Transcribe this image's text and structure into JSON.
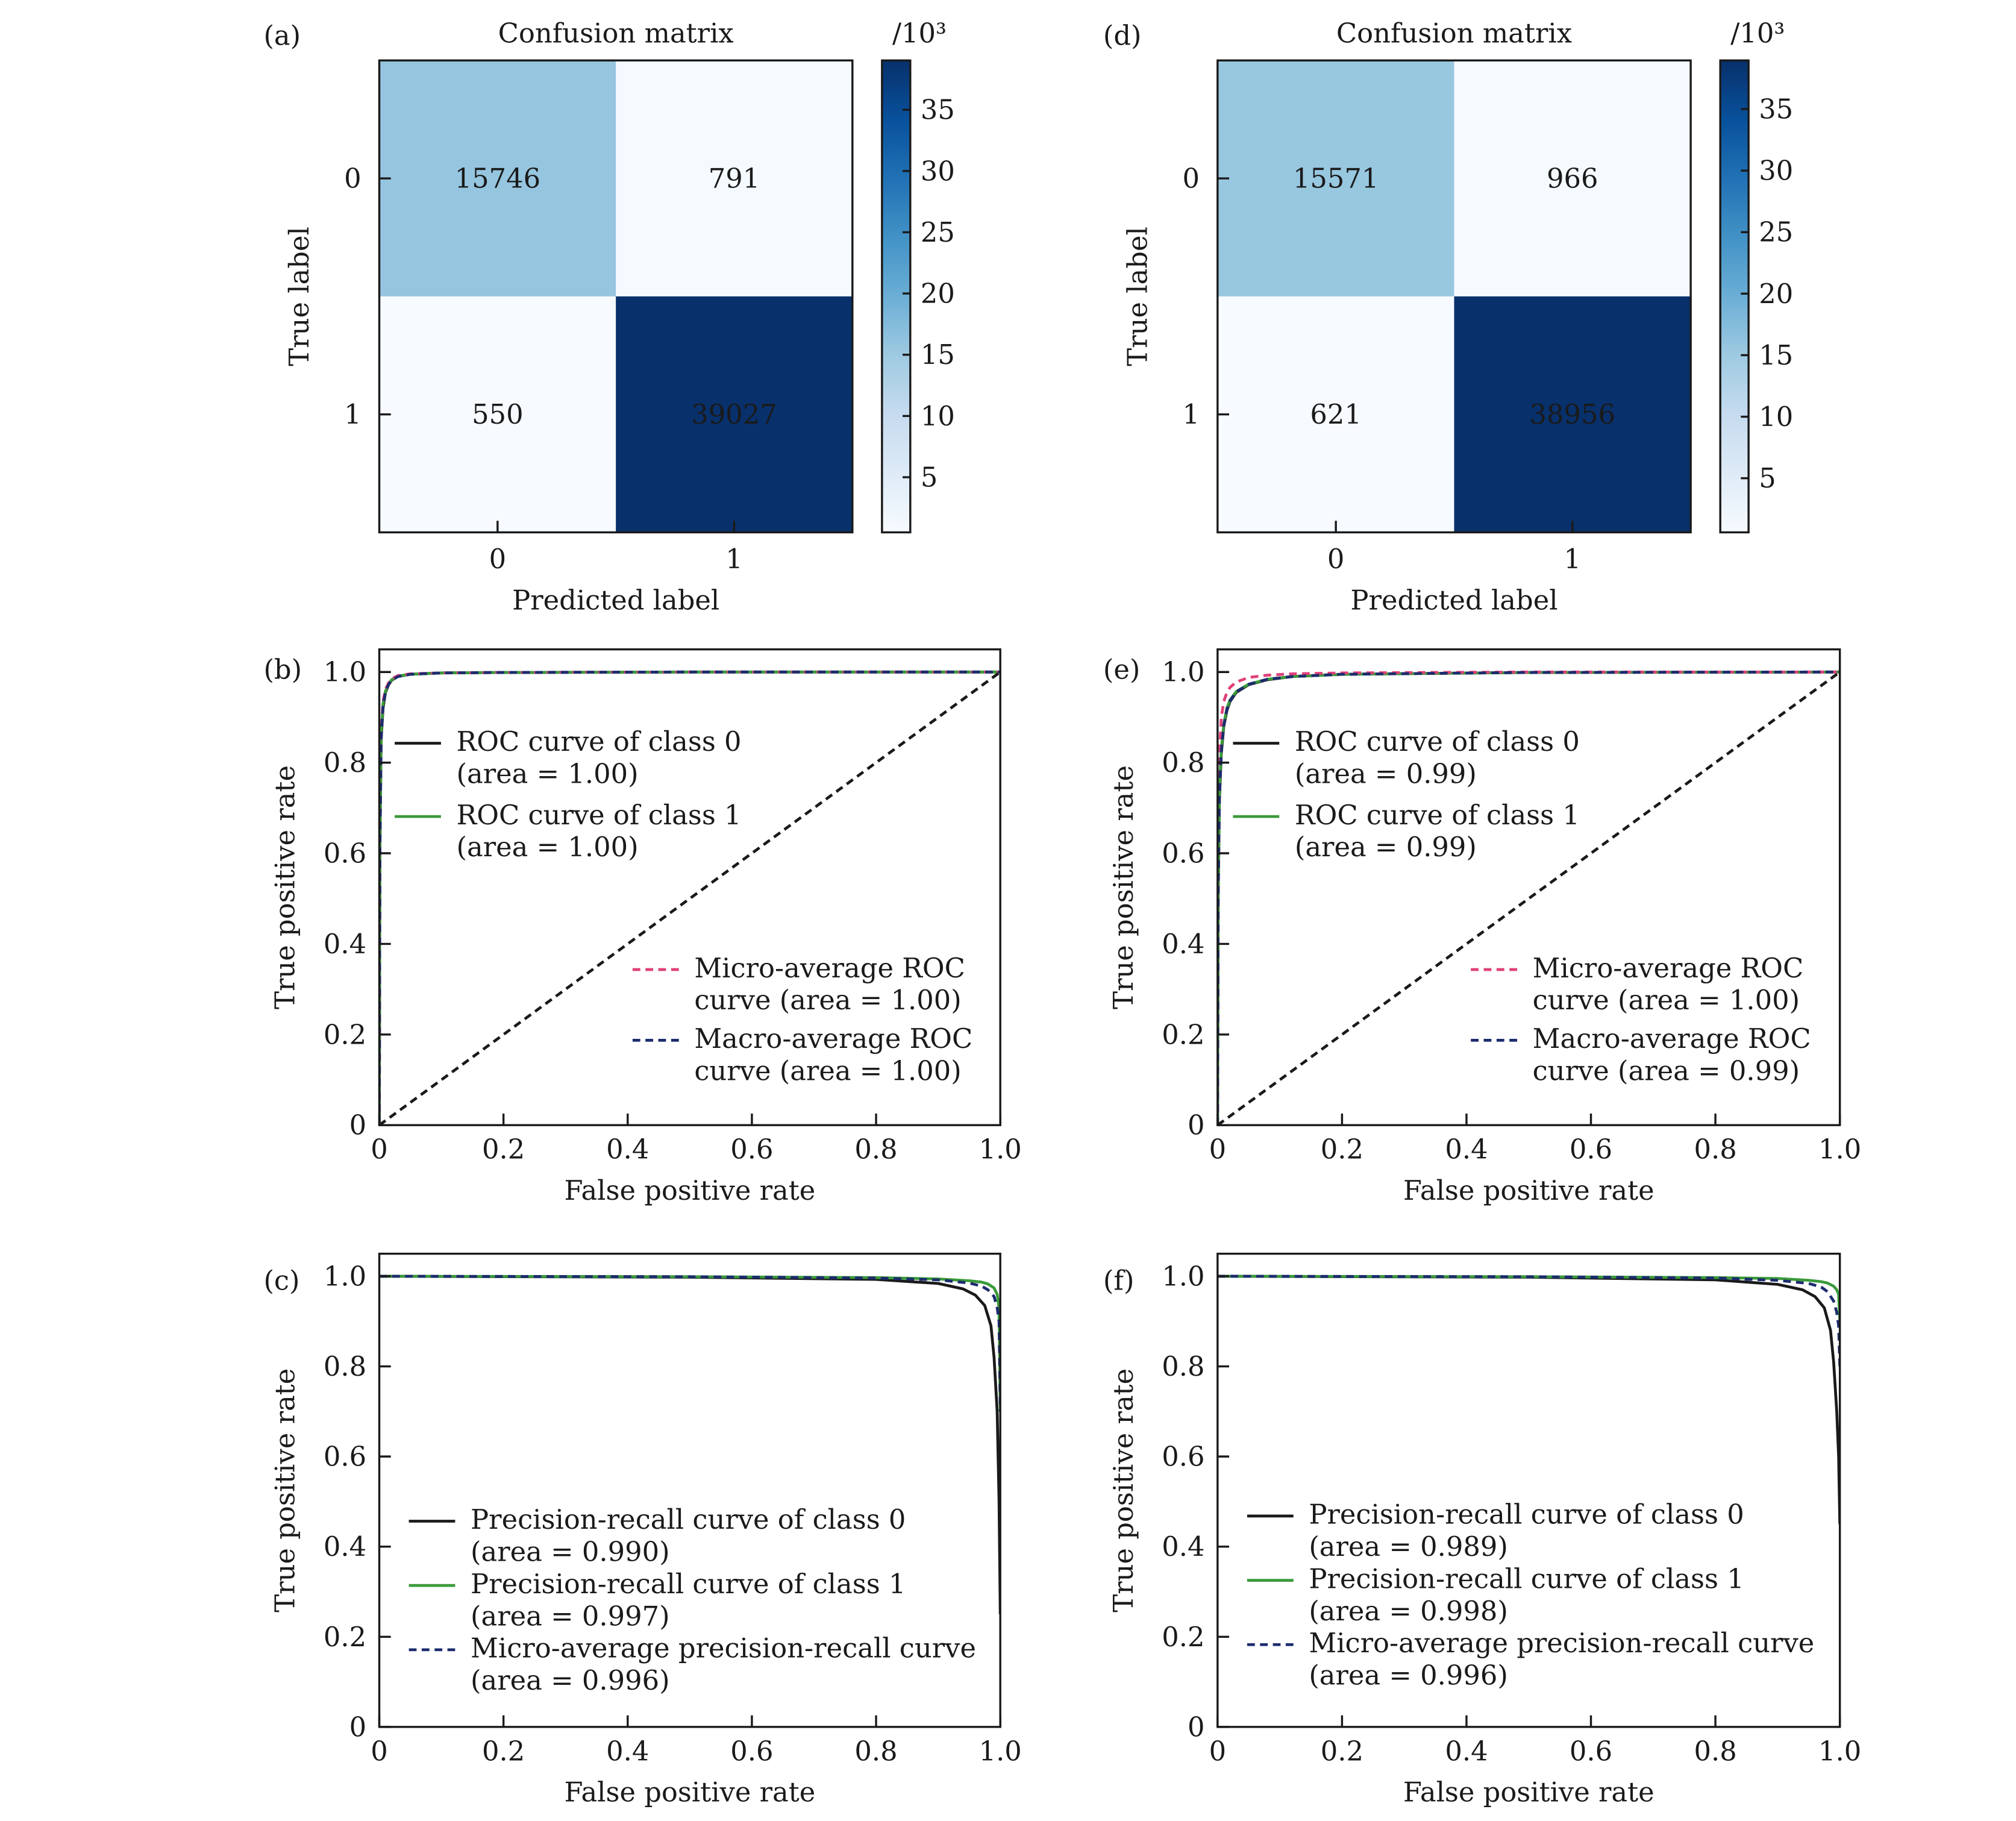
{
  "chart_data": [
    {
      "panel_label": "(a)",
      "type": "heatmap",
      "title": "Confusion matrix",
      "xlabel": "Predicted label",
      "ylabel": "True label",
      "x_categories": [
        "0",
        "1"
      ],
      "y_categories": [
        "0",
        "1"
      ],
      "values": [
        [
          15746,
          791
        ],
        [
          550,
          39027
        ]
      ],
      "value_labels": [
        [
          "15746",
          "791"
        ],
        [
          "550",
          "39027"
        ]
      ],
      "colorbar": {
        "label": "/10³",
        "min": 0.5,
        "max": 39.027,
        "ticks": [
          5,
          10,
          15,
          20,
          25,
          30,
          35
        ],
        "tick_labels": [
          "5",
          "10",
          "15",
          "20",
          "25",
          "30",
          "35"
        ],
        "colormap": "Blues",
        "colors": [
          "#f7fbff",
          "#deebf7",
          "#c6dbef",
          "#9ecae1",
          "#6baed6",
          "#4292c6",
          "#2171b5",
          "#08519c",
          "#08306b"
        ]
      }
    },
    {
      "panel_label": "(b)",
      "type": "line",
      "xlabel": "False positive rate",
      "ylabel": "True positive rate",
      "xlim": [
        0,
        1
      ],
      "ylim": [
        0,
        1.05
      ],
      "xticks": [
        0,
        0.2,
        0.4,
        0.6,
        0.8,
        1.0
      ],
      "xtick_labels": [
        "0",
        "0.2",
        "0.4",
        "0.6",
        "0.8",
        "1.0"
      ],
      "yticks": [
        0,
        0.2,
        0.4,
        0.6,
        0.8,
        1.0
      ],
      "ytick_labels": [
        "0",
        "0.2",
        "0.4",
        "0.6",
        "0.8",
        "1.0"
      ],
      "series": [
        {
          "name": "ROC curve of class 0",
          "sub": "(area = 1.00)",
          "color": "#1a1a1a",
          "dash": "solid",
          "x": [
            0,
            0.001,
            0.003,
            0.006,
            0.01,
            0.015,
            0.02,
            0.03,
            0.05,
            0.1,
            0.2,
            0.5,
            1.0
          ],
          "y": [
            0,
            0.6,
            0.85,
            0.92,
            0.955,
            0.972,
            0.982,
            0.99,
            0.995,
            0.998,
            0.999,
            1.0,
            1.0
          ]
        },
        {
          "name": "ROC curve of class 1",
          "sub": "(area = 1.00)",
          "color": "#3a9a3a",
          "dash": "solid",
          "x": [
            0,
            0.001,
            0.003,
            0.006,
            0.01,
            0.015,
            0.02,
            0.03,
            0.05,
            0.1,
            0.2,
            0.5,
            1.0
          ],
          "y": [
            0,
            0.62,
            0.86,
            0.93,
            0.958,
            0.974,
            0.983,
            0.991,
            0.995,
            0.998,
            0.999,
            1.0,
            1.0
          ]
        },
        {
          "name": "Micro-average ROC",
          "sub": "curve (area = 1.00)",
          "color": "#e0407a",
          "dash": "dashed",
          "x": [
            0,
            0.001,
            0.003,
            0.006,
            0.01,
            0.015,
            0.02,
            0.03,
            0.05,
            0.1,
            0.2,
            0.5,
            1.0
          ],
          "y": [
            0,
            0.64,
            0.87,
            0.935,
            0.962,
            0.976,
            0.985,
            0.992,
            0.996,
            0.998,
            0.999,
            1.0,
            1.0
          ]
        },
        {
          "name": "Macro-average ROC",
          "sub": "curve (area = 1.00)",
          "color": "#1c2c6e",
          "dash": "dashed",
          "x": [
            0,
            0.001,
            0.003,
            0.006,
            0.01,
            0.015,
            0.02,
            0.03,
            0.05,
            0.1,
            0.2,
            0.5,
            1.0
          ],
          "y": [
            0,
            0.61,
            0.855,
            0.925,
            0.956,
            0.973,
            0.982,
            0.99,
            0.995,
            0.998,
            0.999,
            1.0,
            1.0
          ]
        },
        {
          "name": "",
          "color": "#1a1a1a",
          "dash": "dashed",
          "x": [
            0,
            1
          ],
          "y": [
            0,
            1
          ]
        }
      ],
      "legend": [
        {
          "series": 0,
          "placement": "center-left"
        },
        {
          "series": 1,
          "placement": "center-left"
        },
        {
          "series": 2,
          "placement": "lower-right"
        },
        {
          "series": 3,
          "placement": "lower-right"
        }
      ]
    },
    {
      "panel_label": "(c)",
      "type": "line",
      "xlabel": "False positive rate",
      "ylabel": "True positive rate",
      "xlim": [
        0,
        1
      ],
      "ylim": [
        0,
        1.05
      ],
      "xticks": [
        0,
        0.2,
        0.4,
        0.6,
        0.8,
        1.0
      ],
      "xtick_labels": [
        "0",
        "0.2",
        "0.4",
        "0.6",
        "0.8",
        "1.0"
      ],
      "yticks": [
        0,
        0.2,
        0.4,
        0.6,
        0.8,
        1.0
      ],
      "ytick_labels": [
        "0",
        "0.2",
        "0.4",
        "0.6",
        "0.8",
        "1.0"
      ],
      "series": [
        {
          "name": "Precision-recall curve of class 0",
          "sub": "(area = 0.990)",
          "color": "#1a1a1a",
          "dash": "solid",
          "x": [
            0,
            0.5,
            0.8,
            0.9,
            0.94,
            0.96,
            0.975,
            0.985,
            0.99,
            0.995,
            0.998,
            1.0
          ],
          "y": [
            1.0,
            0.998,
            0.993,
            0.984,
            0.972,
            0.958,
            0.935,
            0.89,
            0.82,
            0.7,
            0.5,
            0.25
          ]
        },
        {
          "name": "Precision-recall curve of class 1",
          "sub": "(area = 0.997)",
          "color": "#3a9a3a",
          "dash": "solid",
          "x": [
            0,
            0.5,
            0.8,
            0.9,
            0.95,
            0.97,
            0.98,
            0.99,
            0.995,
            0.998,
            1.0
          ],
          "y": [
            1.0,
            0.999,
            0.997,
            0.994,
            0.99,
            0.987,
            0.983,
            0.974,
            0.96,
            0.93,
            0.7
          ]
        },
        {
          "name": "Micro-average precision-recall curve",
          "sub": "(area = 0.996)",
          "color": "#1c2c6e",
          "dash": "dashed",
          "x": [
            0,
            0.5,
            0.8,
            0.9,
            0.95,
            0.97,
            0.98,
            0.99,
            0.995,
            0.998,
            1.0
          ],
          "y": [
            1.0,
            0.999,
            0.996,
            0.992,
            0.985,
            0.978,
            0.97,
            0.955,
            0.93,
            0.9,
            0.7
          ]
        }
      ],
      "legend": [
        {
          "series": 0,
          "placement": "lower-center"
        },
        {
          "series": 1,
          "placement": "lower-center"
        },
        {
          "series": 2,
          "placement": "lower-center"
        }
      ]
    },
    {
      "panel_label": "(d)",
      "type": "heatmap",
      "title": "Confusion matrix",
      "xlabel": "Predicted label",
      "ylabel": "True label",
      "x_categories": [
        "0",
        "1"
      ],
      "y_categories": [
        "0",
        "1"
      ],
      "values": [
        [
          15571,
          966
        ],
        [
          621,
          38956
        ]
      ],
      "value_labels": [
        [
          "15571",
          "966"
        ],
        [
          "621",
          "38956"
        ]
      ],
      "colorbar": {
        "label": "/10³",
        "min": 0.6,
        "max": 38.956,
        "ticks": [
          5,
          10,
          15,
          20,
          25,
          30,
          35
        ],
        "tick_labels": [
          "5",
          "10",
          "15",
          "20",
          "25",
          "30",
          "35"
        ],
        "colormap": "Blues",
        "colors": [
          "#f7fbff",
          "#deebf7",
          "#c6dbef",
          "#9ecae1",
          "#6baed6",
          "#4292c6",
          "#2171b5",
          "#08519c",
          "#08306b"
        ]
      }
    },
    {
      "panel_label": "(e)",
      "type": "line",
      "xlabel": "False positive rate",
      "ylabel": "True positive rate",
      "xlim": [
        0,
        1
      ],
      "ylim": [
        0,
        1.05
      ],
      "xticks": [
        0,
        0.2,
        0.4,
        0.6,
        0.8,
        1.0
      ],
      "xtick_labels": [
        "0",
        "0.2",
        "0.4",
        "0.6",
        "0.8",
        "1.0"
      ],
      "yticks": [
        0,
        0.2,
        0.4,
        0.6,
        0.8,
        1.0
      ],
      "ytick_labels": [
        "0",
        "0.2",
        "0.4",
        "0.6",
        "0.8",
        "1.0"
      ],
      "series": [
        {
          "name": "ROC curve of class 0",
          "sub": "(area = 0.99)",
          "color": "#1a1a1a",
          "dash": "solid",
          "x": [
            0,
            0.001,
            0.003,
            0.006,
            0.01,
            0.015,
            0.02,
            0.03,
            0.05,
            0.08,
            0.12,
            0.2,
            0.5,
            1.0
          ],
          "y": [
            0,
            0.5,
            0.72,
            0.82,
            0.88,
            0.915,
            0.935,
            0.955,
            0.972,
            0.983,
            0.99,
            0.995,
            0.999,
            1.0
          ]
        },
        {
          "name": "ROC curve of class 1",
          "sub": "(area = 0.99)",
          "color": "#3a9a3a",
          "dash": "solid",
          "x": [
            0,
            0.001,
            0.003,
            0.006,
            0.01,
            0.015,
            0.02,
            0.03,
            0.05,
            0.08,
            0.12,
            0.2,
            0.5,
            1.0
          ],
          "y": [
            0,
            0.52,
            0.74,
            0.83,
            0.885,
            0.92,
            0.938,
            0.957,
            0.973,
            0.984,
            0.99,
            0.995,
            0.999,
            1.0
          ]
        },
        {
          "name": "Micro-average ROC",
          "sub": "curve (area = 1.00)",
          "color": "#e0407a",
          "dash": "dashed",
          "x": [
            0,
            0.001,
            0.003,
            0.006,
            0.01,
            0.015,
            0.02,
            0.03,
            0.05,
            0.08,
            0.12,
            0.2,
            0.5,
            1.0
          ],
          "y": [
            0,
            0.6,
            0.82,
            0.9,
            0.935,
            0.955,
            0.966,
            0.978,
            0.988,
            0.993,
            0.996,
            0.998,
            1.0,
            1.0
          ]
        },
        {
          "name": "Macro-average ROC",
          "sub": "curve (area = 0.99)",
          "color": "#1c2c6e",
          "dash": "dashed",
          "x": [
            0,
            0.001,
            0.003,
            0.006,
            0.01,
            0.015,
            0.02,
            0.03,
            0.05,
            0.08,
            0.12,
            0.2,
            0.5,
            1.0
          ],
          "y": [
            0,
            0.51,
            0.73,
            0.825,
            0.883,
            0.918,
            0.937,
            0.956,
            0.973,
            0.984,
            0.99,
            0.995,
            0.999,
            1.0
          ]
        },
        {
          "name": "",
          "color": "#1a1a1a",
          "dash": "dashed",
          "x": [
            0,
            1
          ],
          "y": [
            0,
            1
          ]
        }
      ],
      "legend": [
        {
          "series": 0,
          "placement": "center-left"
        },
        {
          "series": 1,
          "placement": "center-left"
        },
        {
          "series": 2,
          "placement": "lower-right"
        },
        {
          "series": 3,
          "placement": "lower-right"
        }
      ]
    },
    {
      "panel_label": "(f)",
      "type": "line",
      "xlabel": "False positive rate",
      "ylabel": "True positive rate",
      "xlim": [
        0,
        1
      ],
      "ylim": [
        0,
        1.05
      ],
      "xticks": [
        0,
        0.2,
        0.4,
        0.6,
        0.8,
        1.0
      ],
      "xtick_labels": [
        "0",
        "0.2",
        "0.4",
        "0.6",
        "0.8",
        "1.0"
      ],
      "yticks": [
        0,
        0.2,
        0.4,
        0.6,
        0.8,
        1.0
      ],
      "ytick_labels": [
        "0",
        "0.2",
        "0.4",
        "0.6",
        "0.8",
        "1.0"
      ],
      "series": [
        {
          "name": "Precision-recall curve of class 0",
          "sub": "(area = 0.989)",
          "color": "#1a1a1a",
          "dash": "solid",
          "x": [
            0,
            0.5,
            0.8,
            0.9,
            0.94,
            0.96,
            0.975,
            0.985,
            0.99,
            0.995,
            0.998,
            1.0
          ],
          "y": [
            1.0,
            0.998,
            0.992,
            0.982,
            0.97,
            0.955,
            0.93,
            0.88,
            0.81,
            0.7,
            0.6,
            0.45
          ]
        },
        {
          "name": "Precision-recall curve of class 1",
          "sub": "(area = 0.998)",
          "color": "#3a9a3a",
          "dash": "solid",
          "x": [
            0,
            0.5,
            0.8,
            0.9,
            0.95,
            0.97,
            0.98,
            0.99,
            0.995,
            0.998,
            1.0
          ],
          "y": [
            1.0,
            0.999,
            0.997,
            0.995,
            0.991,
            0.988,
            0.985,
            0.978,
            0.97,
            0.96,
            0.9
          ]
        },
        {
          "name": "Micro-average precision-recall curve",
          "sub": "(area = 0.996)",
          "color": "#1c2c6e",
          "dash": "dashed",
          "x": [
            0,
            0.5,
            0.8,
            0.9,
            0.95,
            0.97,
            0.98,
            0.99,
            0.995,
            0.998,
            1.0
          ],
          "y": [
            1.0,
            0.999,
            0.996,
            0.991,
            0.984,
            0.976,
            0.966,
            0.945,
            0.92,
            0.89,
            0.8
          ]
        }
      ],
      "legend": [
        {
          "series": 0,
          "placement": "lower-center"
        },
        {
          "series": 1,
          "placement": "lower-center"
        },
        {
          "series": 2,
          "placement": "lower-center"
        }
      ]
    }
  ]
}
